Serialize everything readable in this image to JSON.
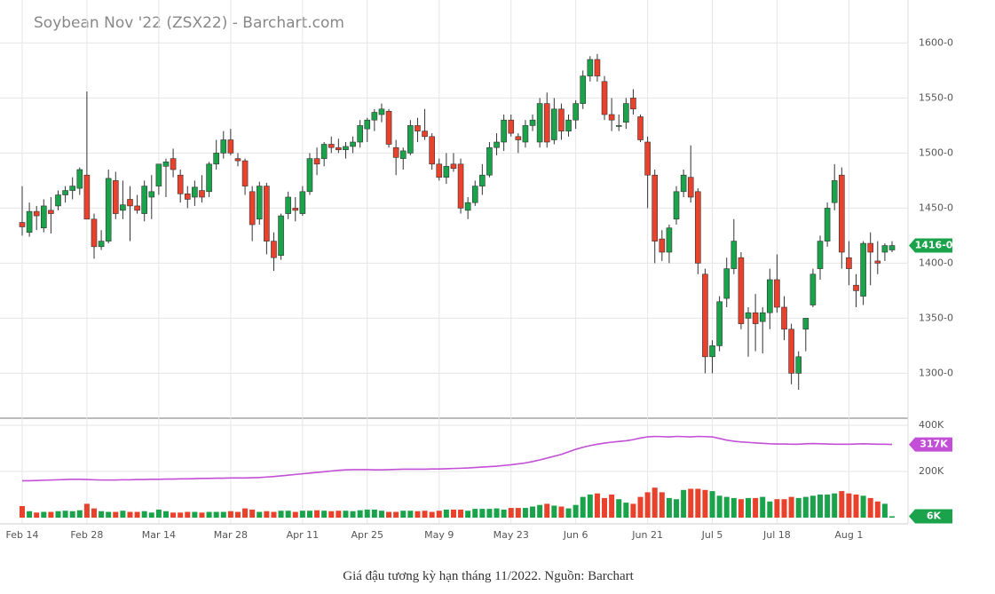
{
  "chart_data": {
    "type": "candlestick",
    "title": "Soybean Nov '22 (ZSX22) - Barchart.com",
    "caption": "Giá đậu tương kỳ hạn tháng 11/2022. Nguồn: Barchart",
    "up_color": "#1aa34a",
    "down_color": "#e8412c",
    "categories": [
      "Feb 14",
      null,
      null,
      null,
      null,
      null,
      null,
      null,
      null,
      "Feb 28",
      null,
      null,
      null,
      null,
      null,
      null,
      null,
      null,
      null,
      "Mar 14",
      null,
      null,
      null,
      null,
      null,
      null,
      null,
      null,
      null,
      "Mar 28",
      null,
      null,
      null,
      null,
      null,
      null,
      null,
      null,
      null,
      "Apr 11",
      null,
      null,
      null,
      null,
      null,
      null,
      null,
      null,
      "Apr 25",
      null,
      null,
      null,
      null,
      null,
      null,
      null,
      null,
      null,
      "May 9",
      null,
      null,
      null,
      null,
      null,
      null,
      null,
      null,
      null,
      "May 23",
      null,
      null,
      null,
      null,
      null,
      null,
      null,
      null,
      "Jun 6",
      null,
      null,
      null,
      null,
      null,
      null,
      null,
      null,
      null,
      "Jun 21",
      null,
      null,
      null,
      null,
      null,
      null,
      null,
      null,
      "Jul 5",
      null,
      null,
      null,
      null,
      null,
      null,
      null,
      null,
      "Jul 18",
      null,
      null,
      null,
      null,
      null,
      null,
      null,
      null,
      null,
      "Aug 1",
      null,
      null,
      null,
      null,
      null,
      null
    ],
    "ohlc": [
      [
        1437,
        1470,
        1425,
        1433
      ],
      [
        1428,
        1455,
        1424,
        1447
      ],
      [
        1447,
        1452,
        1430,
        1443
      ],
      [
        1432,
        1458,
        1428,
        1452
      ],
      [
        1448,
        1460,
        1427,
        1445
      ],
      [
        1452,
        1466,
        1448,
        1462
      ],
      [
        1462,
        1470,
        1455,
        1466
      ],
      [
        1466,
        1478,
        1458,
        1470
      ],
      [
        1468,
        1487,
        1462,
        1485
      ],
      [
        1480,
        1556,
        1440,
        1440
      ],
      [
        1440,
        1445,
        1404,
        1415
      ],
      [
        1415,
        1430,
        1412,
        1420
      ],
      [
        1420,
        1485,
        1418,
        1477
      ],
      [
        1475,
        1483,
        1440,
        1445
      ],
      [
        1448,
        1475,
        1440,
        1453
      ],
      [
        1458,
        1470,
        1420,
        1452
      ],
      [
        1452,
        1462,
        1445,
        1448
      ],
      [
        1445,
        1475,
        1438,
        1470
      ],
      [
        1460,
        1480,
        1440,
        1465
      ],
      [
        1470,
        1490,
        1462,
        1490
      ],
      [
        1488,
        1495,
        1460,
        1492
      ],
      [
        1495,
        1504,
        1478,
        1485
      ],
      [
        1480,
        1485,
        1455,
        1463
      ],
      [
        1463,
        1470,
        1450,
        1458
      ],
      [
        1460,
        1475,
        1452,
        1469
      ],
      [
        1466,
        1480,
        1455,
        1460
      ],
      [
        1465,
        1492,
        1460,
        1490
      ],
      [
        1490,
        1512,
        1485,
        1500
      ],
      [
        1500,
        1520,
        1495,
        1512
      ],
      [
        1512,
        1522,
        1498,
        1500
      ],
      [
        1495,
        1500,
        1488,
        1493
      ],
      [
        1493,
        1495,
        1462,
        1470
      ],
      [
        1465,
        1470,
        1420,
        1435
      ],
      [
        1440,
        1474,
        1435,
        1470
      ],
      [
        1470,
        1473,
        1408,
        1420
      ],
      [
        1420,
        1428,
        1393,
        1405
      ],
      [
        1407,
        1445,
        1403,
        1443
      ],
      [
        1445,
        1465,
        1440,
        1460
      ],
      [
        1450,
        1460,
        1438,
        1448
      ],
      [
        1445,
        1470,
        1443,
        1465
      ],
      [
        1465,
        1500,
        1462,
        1495
      ],
      [
        1495,
        1505,
        1480,
        1490
      ],
      [
        1495,
        1510,
        1488,
        1508
      ],
      [
        1508,
        1515,
        1500,
        1505
      ],
      [
        1505,
        1513,
        1500,
        1503
      ],
      [
        1503,
        1510,
        1495,
        1506
      ],
      [
        1506,
        1515,
        1500,
        1510
      ],
      [
        1510,
        1530,
        1505,
        1525
      ],
      [
        1522,
        1532,
        1510,
        1530
      ],
      [
        1530,
        1540,
        1520,
        1537
      ],
      [
        1535,
        1545,
        1528,
        1540
      ],
      [
        1538,
        1540,
        1505,
        1508
      ],
      [
        1505,
        1512,
        1480,
        1496
      ],
      [
        1495,
        1505,
        1485,
        1502
      ],
      [
        1500,
        1530,
        1498,
        1525
      ],
      [
        1525,
        1532,
        1510,
        1520
      ],
      [
        1520,
        1540,
        1512,
        1515
      ],
      [
        1515,
        1518,
        1485,
        1490
      ],
      [
        1490,
        1495,
        1475,
        1478
      ],
      [
        1478,
        1500,
        1472,
        1488
      ],
      [
        1490,
        1500,
        1483,
        1486
      ],
      [
        1490,
        1495,
        1445,
        1450
      ],
      [
        1448,
        1460,
        1440,
        1455
      ],
      [
        1455,
        1475,
        1452,
        1470
      ],
      [
        1470,
        1490,
        1462,
        1480
      ],
      [
        1480,
        1510,
        1478,
        1505
      ],
      [
        1505,
        1518,
        1498,
        1510
      ],
      [
        1510,
        1535,
        1502,
        1530
      ],
      [
        1530,
        1535,
        1515,
        1518
      ],
      [
        1515,
        1518,
        1500,
        1512
      ],
      [
        1510,
        1530,
        1505,
        1525
      ],
      [
        1525,
        1535,
        1520,
        1530
      ],
      [
        1510,
        1550,
        1505,
        1545
      ],
      [
        1545,
        1555,
        1505,
        1510
      ],
      [
        1512,
        1550,
        1508,
        1540
      ],
      [
        1540,
        1545,
        1512,
        1520
      ],
      [
        1520,
        1535,
        1515,
        1530
      ],
      [
        1530,
        1548,
        1522,
        1545
      ],
      [
        1545,
        1575,
        1540,
        1570
      ],
      [
        1570,
        1588,
        1565,
        1585
      ],
      [
        1585,
        1590,
        1565,
        1570
      ],
      [
        1565,
        1570,
        1530,
        1535
      ],
      [
        1535,
        1550,
        1520,
        1530
      ],
      [
        1525,
        1535,
        1520,
        1525
      ],
      [
        1528,
        1550,
        1522,
        1545
      ],
      [
        1550,
        1558,
        1535,
        1540
      ],
      [
        1533,
        1535,
        1510,
        1512
      ],
      [
        1510,
        1515,
        1450,
        1480
      ],
      [
        1480,
        1485,
        1400,
        1420
      ],
      [
        1422,
        1430,
        1402,
        1410
      ],
      [
        1410,
        1435,
        1400,
        1432
      ],
      [
        1440,
        1470,
        1435,
        1465
      ],
      [
        1465,
        1485,
        1460,
        1480
      ],
      [
        1478,
        1507,
        1455,
        1460
      ],
      [
        1465,
        1468,
        1390,
        1400
      ],
      [
        1390,
        1395,
        1300,
        1315
      ],
      [
        1315,
        1330,
        1300,
        1325
      ],
      [
        1325,
        1370,
        1320,
        1365
      ],
      [
        1368,
        1405,
        1360,
        1395
      ],
      [
        1395,
        1440,
        1390,
        1420
      ],
      [
        1405,
        1410,
        1340,
        1345
      ],
      [
        1350,
        1360,
        1315,
        1355
      ],
      [
        1355,
        1372,
        1320,
        1345
      ],
      [
        1347,
        1360,
        1318,
        1355
      ],
      [
        1355,
        1395,
        1340,
        1385
      ],
      [
        1385,
        1408,
        1355,
        1360
      ],
      [
        1360,
        1370,
        1330,
        1340
      ],
      [
        1340,
        1345,
        1290,
        1300
      ],
      [
        1300,
        1320,
        1285,
        1315
      ],
      [
        1340,
        1350,
        1320,
        1350
      ],
      [
        1362,
        1395,
        1360,
        1390
      ],
      [
        1395,
        1425,
        1385,
        1420
      ],
      [
        1420,
        1455,
        1415,
        1450
      ],
      [
        1455,
        1490,
        1448,
        1475
      ],
      [
        1480,
        1487,
        1395,
        1410
      ],
      [
        1405,
        1420,
        1380,
        1395
      ],
      [
        1380,
        1390,
        1360,
        1375
      ],
      [
        1370,
        1420,
        1362,
        1418
      ],
      [
        1418,
        1428,
        1380,
        1410
      ],
      [
        1402,
        1420,
        1390,
        1400
      ],
      [
        1410,
        1418,
        1402,
        1416
      ],
      [
        1412,
        1420,
        1410,
        1416
      ]
    ],
    "ylim": [
      1260,
      1635
    ],
    "yticks": [
      {
        "value": 1300,
        "label": "1300-0"
      },
      {
        "value": 1350,
        "label": "1350-0"
      },
      {
        "value": 1400,
        "label": "1400-0"
      },
      {
        "value": 1450,
        "label": "1450-0"
      },
      {
        "value": 1500,
        "label": "1500-0"
      },
      {
        "value": 1550,
        "label": "1550-0"
      },
      {
        "value": 1600,
        "label": "1600-0"
      }
    ],
    "price_badge": {
      "value": 1416,
      "label": "1416-0"
    },
    "volume": {
      "values": [
        50,
        28,
        22,
        25,
        25,
        28,
        30,
        28,
        32,
        60,
        40,
        28,
        25,
        25,
        30,
        25,
        25,
        28,
        22,
        35,
        28,
        22,
        22,
        25,
        25,
        22,
        25,
        25,
        25,
        28,
        25,
        40,
        35,
        25,
        28,
        25,
        30,
        30,
        25,
        30,
        30,
        32,
        30,
        28,
        30,
        30,
        28,
        32,
        35,
        35,
        30,
        25,
        25,
        30,
        30,
        28,
        30,
        25,
        30,
        35,
        35,
        35,
        30,
        38,
        38,
        38,
        40,
        35,
        42,
        42,
        42,
        48,
        55,
        60,
        52,
        48,
        40,
        55,
        90,
        100,
        105,
        85,
        100,
        80,
        65,
        60,
        90,
        110,
        130,
        110,
        85,
        80,
        120,
        125,
        125,
        120,
        115,
        95,
        90,
        85,
        80,
        85,
        85,
        90,
        70,
        80,
        80,
        90,
        85,
        90,
        95,
        100,
        100,
        105,
        115,
        105,
        100,
        95,
        85,
        70,
        60,
        6
      ],
      "badge": {
        "value": 6,
        "label": "6K"
      }
    },
    "open_interest": {
      "color": "#c34fd6",
      "values": [
        160,
        160,
        161,
        162,
        163,
        164,
        165,
        166,
        166,
        165,
        164,
        163,
        163,
        163,
        164,
        164,
        165,
        165,
        166,
        166,
        167,
        167,
        168,
        168,
        169,
        170,
        170,
        171,
        171,
        172,
        172,
        172,
        173,
        174,
        176,
        178,
        181,
        184,
        187,
        190,
        193,
        196,
        199,
        202,
        205,
        207,
        208,
        208,
        208,
        207,
        207,
        208,
        209,
        210,
        210,
        210,
        210,
        211,
        211,
        212,
        213,
        214,
        215,
        217,
        219,
        221,
        223,
        226,
        229,
        233,
        237,
        243,
        250,
        258,
        266,
        274,
        285,
        296,
        305,
        312,
        318,
        323,
        327,
        330,
        333,
        338,
        345,
        350,
        352,
        351,
        350,
        352,
        351,
        350,
        352,
        351,
        350,
        343,
        336,
        331,
        328,
        326,
        324,
        322,
        320,
        319,
        319,
        318,
        318,
        320,
        321,
        320,
        319,
        318,
        318,
        318,
        319,
        320,
        319,
        318,
        318,
        317
      ],
      "badge": {
        "value": 317,
        "label": "317K"
      }
    },
    "volume_ylim": [
      0,
      427
    ],
    "volume_yticks": [
      {
        "value": 200,
        "label": "200K"
      },
      {
        "value": 400,
        "label": "400K"
      }
    ],
    "grid": true
  }
}
